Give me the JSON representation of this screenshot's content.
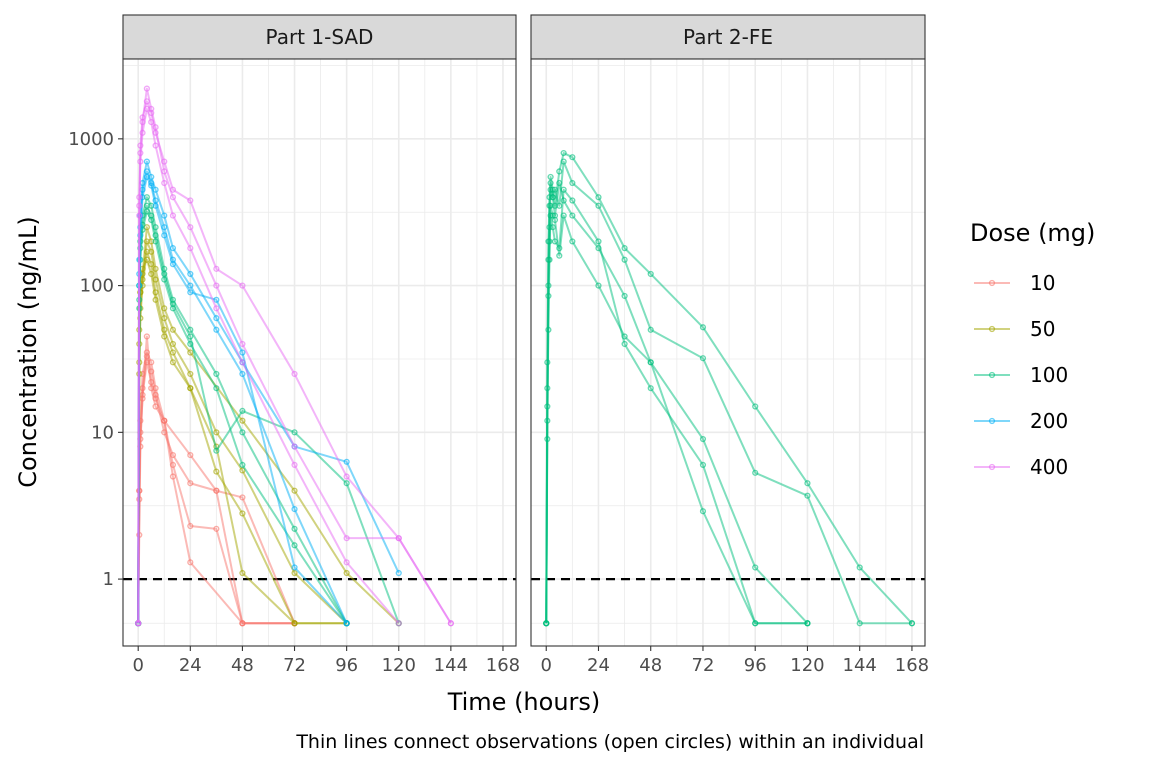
{
  "chart_data": {
    "type": "line",
    "y_scale": "log10",
    "ylim": [
      0.35,
      3500
    ],
    "xlim": [
      -7,
      174
    ],
    "x_ticks": [
      0,
      24,
      48,
      72,
      96,
      120,
      144,
      168
    ],
    "x_tick_labels": [
      "0",
      "24",
      "48",
      "72",
      "96",
      "120",
      "144",
      "168"
    ],
    "y_ticks": [
      1,
      10,
      100,
      1000
    ],
    "y_tick_labels": [
      "1",
      "10",
      "100",
      "1000"
    ],
    "xlabel": "Time (hours)",
    "ylabel": "Concentration (ng/mL)",
    "caption": "Thin lines connect observations (open circles) within an individual",
    "reference_line": {
      "y": 1,
      "style": "dashed",
      "color": "#000000"
    },
    "grid": true,
    "legend": {
      "title": "Dose (mg)",
      "position": "right",
      "entries": [
        {
          "label": "10",
          "color": "#F8766D"
        },
        {
          "label": "50",
          "color": "#A3A500"
        },
        {
          "label": "100",
          "color": "#00BF7D"
        },
        {
          "label": "200",
          "color": "#00B0F6"
        },
        {
          "label": "400",
          "color": "#E76BF3"
        }
      ]
    },
    "panels": [
      {
        "label": "Part 1-SAD",
        "series": [
          {
            "name": "10",
            "x": [
              0,
              0.5,
              1,
              2,
              4,
              6,
              8,
              12,
              16,
              24,
              36,
              48,
              72
            ],
            "y": [
              0.5,
              4,
              12,
              25,
              35,
              30,
              20,
              12,
              6,
              2.3,
              2.2,
              0.5,
              0.5
            ]
          },
          {
            "name": "10",
            "x": [
              0,
              0.5,
              1,
              2,
              4,
              6,
              8,
              12,
              16,
              24,
              48,
              72
            ],
            "y": [
              0.5,
              2,
              8,
              18,
              30,
              22,
              17,
              12,
              5,
              1.3,
              0.5,
              0.5
            ]
          },
          {
            "name": "10",
            "x": [
              0,
              0.5,
              1,
              2,
              4,
              6,
              8,
              12,
              16,
              24,
              36,
              48,
              72
            ],
            "y": [
              0.5,
              4,
              10,
              20,
              33,
              26,
              18,
              10,
              7,
              4.5,
              4,
              0.5,
              0.5
            ]
          },
          {
            "name": "10",
            "x": [
              0,
              0.5,
              1,
              2,
              4,
              6,
              8,
              12,
              24,
              36,
              48,
              72
            ],
            "y": [
              0.5,
              3.5,
              9,
              17,
              45,
              20,
              15,
              12,
              7,
              4,
              3.6,
              0.5
            ]
          },
          {
            "name": "50",
            "x": [
              0,
              0.5,
              1,
              2,
              4,
              6,
              8,
              12,
              16,
              24,
              36,
              48,
              72,
              96
            ],
            "y": [
              0.5,
              40,
              90,
              130,
              150,
              120,
              80,
              45,
              30,
              20,
              5.4,
              2.8,
              0.5,
              0.5
            ]
          },
          {
            "name": "50",
            "x": [
              0,
              0.5,
              1,
              2,
              4,
              6,
              8,
              12,
              16,
              24,
              36,
              48,
              72,
              96
            ],
            "y": [
              0.5,
              30,
              70,
              110,
              200,
              170,
              110,
              60,
              40,
              25,
              10,
              5.5,
              1.1,
              0.5
            ]
          },
          {
            "name": "50",
            "x": [
              0,
              0.5,
              1,
              2,
              4,
              6,
              8,
              12,
              16,
              24,
              36,
              48,
              72,
              96
            ],
            "y": [
              0.5,
              25,
              60,
              100,
              170,
              140,
              90,
              50,
              35,
              20,
              8,
              1.1,
              0.5,
              0.5
            ]
          },
          {
            "name": "50",
            "x": [
              0,
              0.5,
              1,
              2,
              4,
              6,
              8,
              12,
              16,
              24,
              48,
              72,
              96,
              120
            ],
            "y": [
              0.5,
              50,
              90,
              120,
              250,
              200,
              130,
              70,
              50,
              35,
              12,
              4,
              1.1,
              0.5
            ]
          },
          {
            "name": "100",
            "x": [
              0,
              0.5,
              1,
              2,
              4,
              6,
              8,
              12,
              16,
              24,
              36,
              48,
              72,
              96
            ],
            "y": [
              0.5,
              100,
              200,
              300,
              400,
              350,
              250,
              130,
              80,
              50,
              25,
              10,
              2.2,
              0.5
            ]
          },
          {
            "name": "100",
            "x": [
              0,
              0.5,
              1,
              2,
              4,
              6,
              8,
              12,
              16,
              24,
              36,
              48,
              72,
              96,
              120
            ],
            "y": [
              0.5,
              80,
              180,
              260,
              350,
              300,
              220,
              120,
              75,
              45,
              7.5,
              14,
              10,
              4.5,
              0.5
            ]
          },
          {
            "name": "100",
            "x": [
              0,
              0.5,
              1,
              2,
              4,
              6,
              8,
              12,
              16,
              24,
              36,
              48,
              72,
              96
            ],
            "y": [
              0.5,
              70,
              150,
              240,
              320,
              280,
              200,
              110,
              70,
              40,
              20,
              6,
              1.7,
              0.5
            ]
          },
          {
            "name": "200",
            "x": [
              0,
              0.5,
              1,
              2,
              4,
              6,
              8,
              12,
              16,
              24,
              36,
              48,
              72,
              96,
              120
            ],
            "y": [
              0.5,
              150,
              300,
              500,
              700,
              550,
              450,
              300,
              180,
              120,
              60,
              30,
              8,
              6.3,
              1.1
            ]
          },
          {
            "name": "200",
            "x": [
              0,
              0.5,
              1,
              2,
              4,
              6,
              8,
              12,
              16,
              24,
              36,
              48,
              72,
              96
            ],
            "y": [
              0.5,
              120,
              250,
              450,
              600,
              500,
              380,
              250,
              150,
              100,
              50,
              25,
              3,
              0.5
            ]
          },
          {
            "name": "200",
            "x": [
              0,
              0.5,
              1,
              2,
              4,
              6,
              8,
              12,
              16,
              24,
              36,
              48,
              72,
              96
            ],
            "y": [
              0.5,
              100,
              220,
              400,
              550,
              480,
              350,
              220,
              140,
              90,
              80,
              35,
              1.2,
              0.5
            ]
          },
          {
            "name": "400",
            "x": [
              0,
              0.5,
              1,
              2,
              4,
              6,
              8,
              12,
              16,
              24,
              36,
              48,
              72,
              96,
              120,
              144
            ],
            "y": [
              0.5,
              400,
              900,
              1400,
              1800,
              1500,
              1100,
              700,
              450,
              380,
              130,
              100,
              25,
              5,
              1.9,
              0.5
            ]
          },
          {
            "name": "400",
            "x": [
              0,
              0.5,
              1,
              2,
              4,
              6,
              8,
              12,
              16,
              24,
              36,
              48,
              72,
              96,
              120,
              144
            ],
            "y": [
              0.5,
              350,
              800,
              1300,
              2200,
              1600,
              1200,
              600,
              400,
              250,
              100,
              40,
              8,
              1.9,
              1.9,
              0.5
            ]
          },
          {
            "name": "400",
            "x": [
              0,
              0.5,
              1,
              2,
              4,
              6,
              8,
              12,
              16,
              24,
              36,
              48,
              72,
              96,
              120
            ],
            "y": [
              0.5,
              300,
              700,
              1100,
              1600,
              1300,
              900,
              500,
              300,
              180,
              70,
              30,
              6,
              1.3,
              0.5
            ]
          }
        ]
      },
      {
        "label": "Part 2-FE",
        "series": [
          {
            "name": "100",
            "x": [
              0,
              0.5,
              1,
              1.5,
              2,
              3,
              4,
              6,
              8,
              12,
              24,
              36,
              48,
              72,
              96,
              120,
              144,
              168
            ],
            "y": [
              0.5,
              30,
              200,
              400,
              550,
              450,
              350,
              600,
              800,
              750,
              400,
              180,
              120,
              52,
              15,
              4.5,
              1.2,
              0.5
            ]
          },
          {
            "name": "100",
            "x": [
              0,
              0.5,
              1,
              1.5,
              2,
              3,
              4,
              6,
              8,
              12,
              24,
              36,
              48,
              72,
              96,
              120,
              144,
              168
            ],
            "y": [
              0.5,
              20,
              150,
              350,
              500,
              400,
              450,
              350,
              700,
              500,
              350,
              150,
              50,
              32,
              5.3,
              3.7,
              0.5,
              0.5
            ]
          },
          {
            "name": "100",
            "x": [
              0,
              0.5,
              1,
              1.5,
              2,
              3,
              4,
              6,
              8,
              12,
              24,
              36,
              48,
              72,
              96,
              120
            ],
            "y": [
              0.5,
              15,
              100,
              250,
              450,
              400,
              300,
              500,
              380,
              300,
              180,
              85,
              30,
              9,
              1.2,
              0.5
            ]
          },
          {
            "name": "100",
            "x": [
              0,
              0.5,
              1,
              1.5,
              2,
              3,
              4,
              6,
              8,
              12,
              24,
              36,
              48,
              72,
              96,
              120
            ],
            "y": [
              0.5,
              9,
              85,
              200,
              300,
              250,
              200,
              180,
              450,
              380,
              200,
              40,
              20,
              6,
              0.5,
              0.5
            ]
          },
          {
            "name": "100",
            "x": [
              0,
              0.5,
              1,
              1.5,
              2,
              3,
              4,
              6,
              8,
              12,
              24,
              36,
              48,
              72,
              96,
              120
            ],
            "y": [
              0.5,
              12,
              50,
              150,
              350,
              300,
              280,
              160,
              300,
              200,
              100,
              45,
              30,
              2.9,
              0.5,
              0.5
            ]
          }
        ]
      }
    ]
  }
}
